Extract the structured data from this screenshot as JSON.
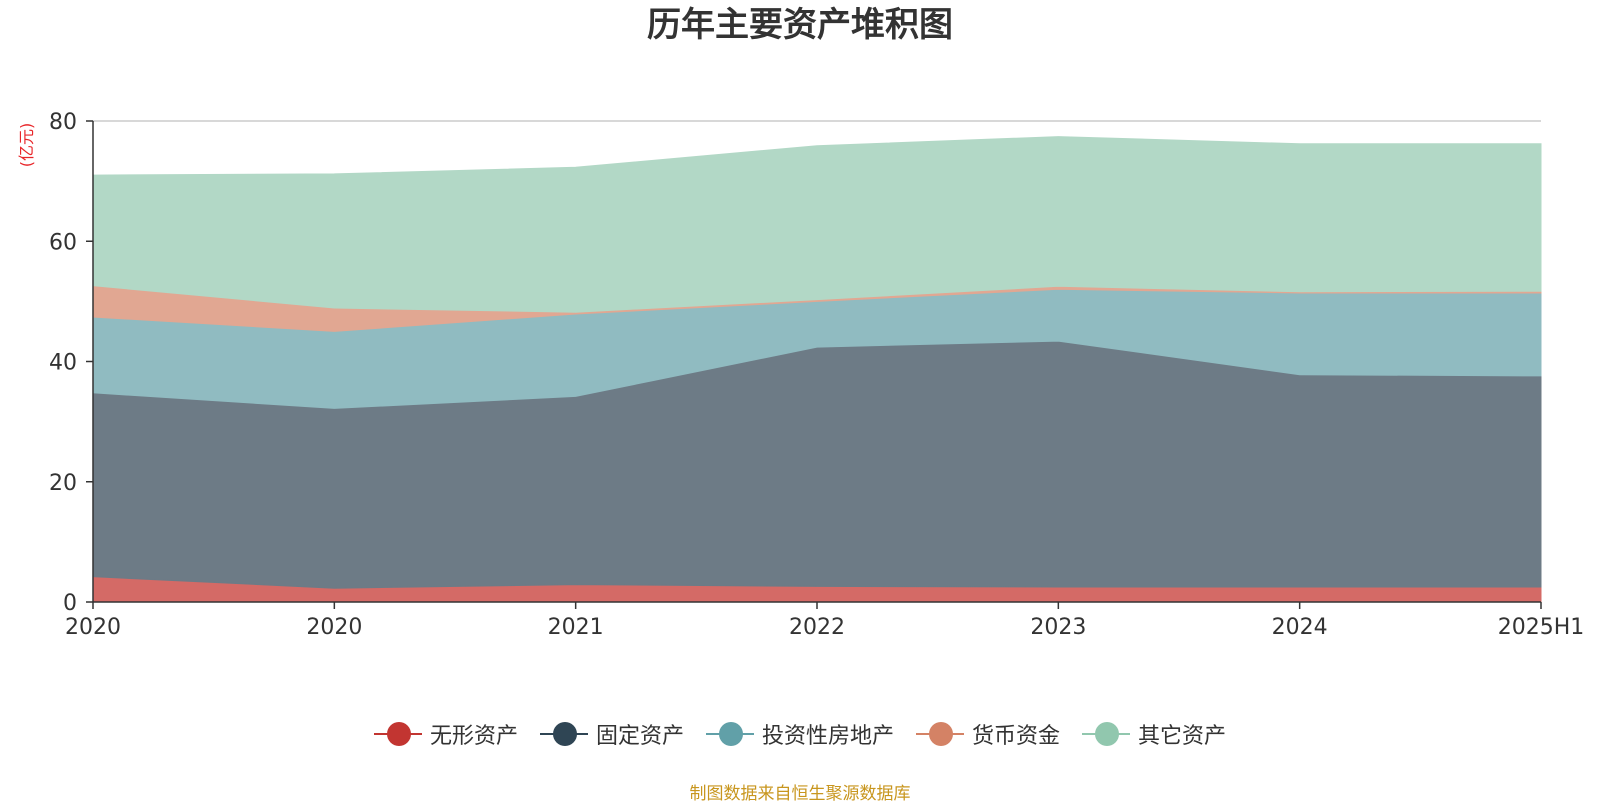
{
  "chart_data": {
    "type": "area",
    "stacked": true,
    "title": "历年主要资产堆积图",
    "ylabel": "(亿元)",
    "ylim": [
      0,
      80
    ],
    "yticks": [
      0,
      20,
      40,
      60,
      80
    ],
    "categories": [
      "2020",
      "2020",
      "2021",
      "2022",
      "2023",
      "2024",
      "2025H1"
    ],
    "series": [
      {
        "name": "无形资产",
        "color": "#c23531",
        "fill": "#d46a66",
        "values": [
          4.2,
          2.3,
          2.9,
          2.6,
          2.5,
          2.5,
          2.5
        ]
      },
      {
        "name": "固定资产",
        "color": "#2f4554",
        "fill": "#6d7b86",
        "values": [
          30.6,
          29.9,
          31.3,
          39.8,
          40.9,
          35.3,
          35.1
        ]
      },
      {
        "name": "投资性房地产",
        "color": "#61a0a8",
        "fill": "#90bbc1",
        "values": [
          12.6,
          12.8,
          13.7,
          7.6,
          8.6,
          13.6,
          13.8
        ]
      },
      {
        "name": "货币资金",
        "color": "#d48265",
        "fill": "#e1a792",
        "values": [
          5.2,
          3.9,
          0.3,
          0.3,
          0.5,
          0.2,
          0.3
        ]
      },
      {
        "name": "其它资产",
        "color": "#91c7ae",
        "fill": "#b2d8c6",
        "values": [
          18.4,
          22.3,
          24.1,
          25.6,
          24.9,
          24.6,
          24.5
        ]
      }
    ]
  },
  "source_note": "制图数据来自恒生聚源数据库"
}
